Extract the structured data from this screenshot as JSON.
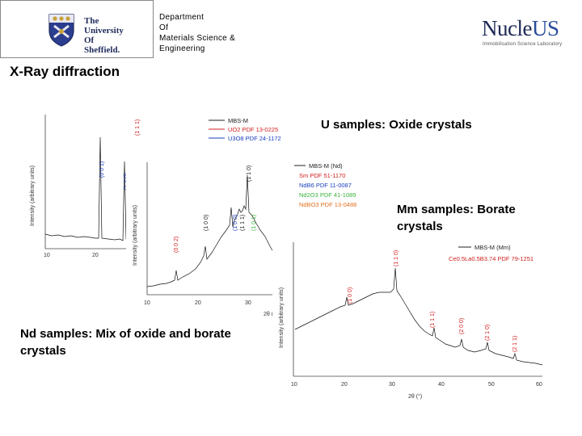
{
  "header": {
    "university_lines": [
      "The",
      "University",
      "Of",
      "Sheffield."
    ],
    "department_lines": [
      "Department",
      "Of",
      "Materials Science &",
      "Engineering"
    ],
    "lab_logo_main": "Nucle",
    "lab_logo_accent": "US",
    "lab_logo_subtitle": "Immobilisation Science Laboratory"
  },
  "slide_title": "X-Ray diffraction",
  "annotations": {
    "u_samples": "U samples: Oxide crystals",
    "mm_samples": "Mm samples: Borate crystals",
    "nd_samples": "Nd samples: Mix of oxide and borate crystals"
  },
  "colors": {
    "uni_navy": "#1f2a5a",
    "lab_accent": "#2a4f9c",
    "red_ref": "#d22020",
    "blue_ref": "#1a3fbf",
    "green_ref": "#3cb43c",
    "orange_ref": "#e07020"
  },
  "plots": {
    "u": {
      "ylabel": "Intensity (arbitrary units)",
      "xticks": [
        "10",
        "20"
      ],
      "legend": [
        {
          "text": "MBS-M",
          "color": "#222222"
        },
        {
          "text": "UO2 PDF 13-0225",
          "color": "#d22020"
        },
        {
          "text": "U3O8 PDF 24-1172",
          "color": "#1a3fbf"
        }
      ],
      "peak_labels": [
        {
          "text": "(1 1 1)",
          "color": "#d22020"
        },
        {
          "text": "(0 0 1)",
          "color": "#1a3fbf"
        },
        {
          "text": "(1 3 0)",
          "color": "#1a3fbf"
        }
      ]
    },
    "nd": {
      "ylabel": "Intensity (arbitrary units)",
      "xlabel": "2θ (°)",
      "xticks": [
        "10",
        "20",
        "30"
      ],
      "legend": [
        {
          "text": "MBS-M (Nd)",
          "color": "#222222"
        },
        {
          "text": "Sm PDF 51-1170",
          "color": "#d22020"
        },
        {
          "text": "NdB6 PDF 11-0087",
          "color": "#1a3fbf"
        },
        {
          "text": "Nd2O3 PDF 41-1089",
          "color": "#3cb43c"
        },
        {
          "text": "NdBO3 PDF 13-0488",
          "color": "#e07020"
        }
      ],
      "peak_labels": [
        {
          "text": "(0 0 2)",
          "color": "#d22020"
        },
        {
          "text": "(1 0 0)",
          "color": "#222222"
        },
        {
          "text": "(1 1 0)",
          "color": "#222222"
        },
        {
          "text": "(1 0 0)",
          "color": "#1a3fbf"
        },
        {
          "text": "(1 1 1)",
          "color": "#222222"
        },
        {
          "text": "(1 0 1)",
          "color": "#3cb43c"
        }
      ]
    },
    "mm": {
      "ylabel": "Intensity (arbitrary units)",
      "xlabel": "2θ (°)",
      "xticks": [
        "10",
        "20",
        "30",
        "40",
        "50",
        "60"
      ],
      "legend": [
        {
          "text": "MBS-M (Mm)",
          "color": "#222222"
        },
        {
          "text": "Ce0.5La0.5B3.74 PDF 79-1251",
          "color": "#d22020"
        }
      ],
      "peak_labels": [
        {
          "text": "(1 0 0)",
          "color": "#d22020"
        },
        {
          "text": "(1 1 0)",
          "color": "#d22020"
        },
        {
          "text": "(1 1 1)",
          "color": "#d22020"
        },
        {
          "text": "(2 0 0)",
          "color": "#d22020"
        },
        {
          "text": "(2 1 0)",
          "color": "#d22020"
        },
        {
          "text": "(2 1 1)",
          "color": "#d22020"
        }
      ]
    }
  }
}
